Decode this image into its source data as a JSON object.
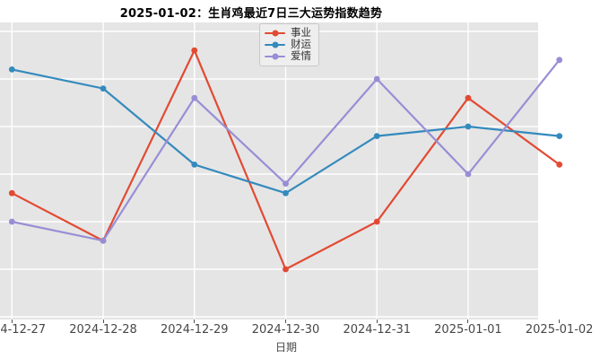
{
  "title": "2025-01-02：生肖鸡最近7日三大运势指数趋势",
  "chart_data": {
    "type": "line",
    "x": [
      "2024-12-27",
      "2024-12-28",
      "2024-12-29",
      "2024-12-30",
      "2024-12-31",
      "2025-01-01",
      "2025-01-02"
    ],
    "xlabel": "日期",
    "series": [
      {
        "name": "事业",
        "color": "#E24A33",
        "values": [
          78,
          73,
          93,
          70,
          75,
          88,
          81
        ]
      },
      {
        "name": "财运",
        "color": "#348ABD",
        "values": [
          91,
          89,
          81,
          78,
          84,
          85,
          84
        ]
      },
      {
        "name": "爱情",
        "color": "#988ED5",
        "values": [
          75,
          73,
          88,
          79,
          90,
          80,
          92
        ]
      }
    ],
    "ylim": [
      64,
      96
    ],
    "y_gridlines": [
      65,
      70,
      75,
      80,
      85,
      90,
      95
    ],
    "grid": true,
    "legend_position": "top-center",
    "style": {
      "plot_bg": "#E5E5E5",
      "grid_color": "#FFFFFF",
      "tick_color": "#474747",
      "marker": "circle"
    }
  }
}
